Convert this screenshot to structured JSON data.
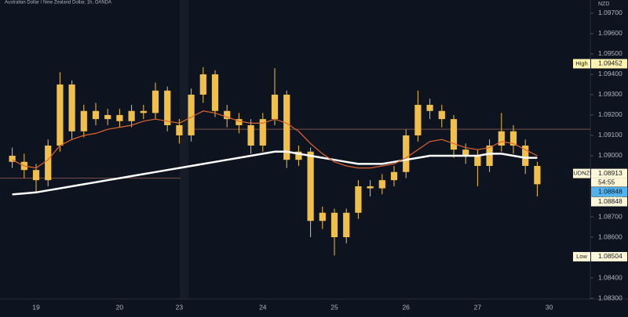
{
  "chart_data": {
    "type": "candlestick",
    "title": "Australian Dollar / New Zealand Dollar, 1h, OANDA",
    "y_axis_label": "NZD",
    "categories": [
      null,
      null,
      "19",
      null,
      null,
      null,
      null,
      null,
      null,
      "20",
      null,
      null,
      null,
      null,
      "23",
      null,
      null,
      null,
      null,
      null,
      null,
      "24",
      null,
      null,
      null,
      null,
      null,
      "25",
      null,
      null,
      null,
      null,
      null,
      "26",
      null,
      null,
      null,
      null,
      null,
      "27",
      null,
      null,
      null,
      null,
      null,
      "30"
    ],
    "open": [
      1.09,
      1.0897,
      1.0893,
      1.0888,
      1.0905,
      1.0935,
      1.0912,
      1.0922,
      1.0918,
      1.092,
      1.0917,
      1.0922,
      1.0921,
      1.0932,
      1.0915,
      1.091,
      1.093,
      1.094,
      1.0922,
      1.0918,
      1.0915,
      1.0905,
      1.0918,
      1.093,
      1.0898,
      1.0902,
      1.0868,
      1.0872,
      1.086,
      1.0872,
      1.0885,
      1.0884,
      1.0888,
      1.0892,
      1.091,
      1.0925,
      1.0922,
      1.0918,
      1.0903,
      1.09,
      1.0895,
      1.0905,
      1.0912,
      1.0905,
      1.0895,
      null
    ],
    "high": [
      1.0904,
      1.0901,
      1.0896,
      1.0908,
      1.0941,
      1.0937,
      1.0925,
      1.0926,
      1.0923,
      1.0923,
      1.0925,
      1.0925,
      1.0936,
      1.0934,
      1.0918,
      1.0933,
      1.09435,
      1.0942,
      1.0925,
      1.0921,
      1.0918,
      1.0921,
      1.0943,
      1.0932,
      1.0905,
      1.0904,
      1.0875,
      1.0874,
      1.0874,
      1.0888,
      1.0888,
      1.0891,
      1.0895,
      1.0913,
      1.0932,
      1.0928,
      1.0925,
      1.092,
      1.0906,
      1.0903,
      1.0908,
      1.0921,
      1.0915,
      1.0908,
      1.0897,
      null
    ],
    "low": [
      1.0894,
      1.0889,
      1.0882,
      1.0885,
      1.0902,
      1.0908,
      1.0909,
      1.0915,
      1.0915,
      1.0914,
      1.0914,
      1.0918,
      1.0918,
      1.0912,
      1.0906,
      1.0907,
      1.0926,
      1.0919,
      1.0914,
      1.0911,
      1.0901,
      1.0902,
      1.0915,
      1.0894,
      1.0895,
      1.086,
      1.0864,
      1.0851,
      1.0857,
      1.0869,
      1.088,
      1.0881,
      1.0885,
      1.0889,
      1.0907,
      1.0918,
      1.0914,
      1.0899,
      1.0896,
      1.0885,
      1.0892,
      1.0902,
      1.0901,
      1.0891,
      1.088,
      null
    ],
    "close": [
      1.0897,
      1.0893,
      1.0888,
      1.0905,
      1.0935,
      1.0912,
      1.0922,
      1.0918,
      1.092,
      1.0917,
      1.0922,
      1.0921,
      1.0932,
      1.0915,
      1.091,
      1.093,
      1.094,
      1.0922,
      1.0918,
      1.0915,
      1.0905,
      1.0918,
      1.093,
      1.0898,
      1.0902,
      1.0868,
      1.0872,
      1.086,
      1.0872,
      1.0885,
      1.0884,
      1.0888,
      1.0892,
      1.091,
      1.0925,
      1.0922,
      1.0918,
      1.0903,
      1.09,
      1.0895,
      1.0905,
      1.0912,
      1.0905,
      1.0895,
      1.0886,
      null
    ],
    "color": "#f0c04a",
    "overlays": [
      {
        "color": "#ffffff",
        "values": [
          1.0881,
          1.08815,
          1.0882,
          1.0883,
          1.0884,
          1.0885,
          1.0886,
          1.0887,
          1.0888,
          1.0889,
          1.089,
          1.0891,
          1.0892,
          1.0893,
          1.0894,
          1.0895,
          1.0896,
          1.0897,
          1.0898,
          1.0899,
          1.09,
          1.0901,
          1.0902,
          1.0902,
          1.0901,
          1.09,
          1.0899,
          1.0898,
          1.0897,
          1.0896,
          1.0896,
          1.0896,
          1.0897,
          1.0898,
          1.0899,
          1.09,
          1.09,
          1.09,
          1.09,
          1.09,
          1.0901,
          1.0901,
          1.09,
          1.0899,
          1.0899,
          null
        ]
      },
      {
        "color": "#e0662e",
        "values": [
          1.0898,
          1.0895,
          1.0894,
          1.0898,
          1.0905,
          1.0908,
          1.091,
          1.0911,
          1.0913,
          1.0914,
          1.0915,
          1.0917,
          1.0918,
          1.0917,
          1.0916,
          1.0919,
          1.0922,
          1.0921,
          1.0919,
          1.0917,
          1.0916,
          1.0916,
          1.0918,
          1.0916,
          1.0912,
          1.0906,
          1.0901,
          1.0897,
          1.0895,
          1.0894,
          1.0894,
          1.0895,
          1.0896,
          1.0899,
          1.0903,
          1.0907,
          1.0908,
          1.0906,
          1.0904,
          1.0903,
          1.0904,
          1.0907,
          1.0906,
          1.0903,
          1.09,
          null
        ]
      }
    ],
    "levels": [
      {
        "value": 1.0913,
        "color": "#7a4f48"
      },
      {
        "value": 1.0889,
        "color": "#7a4f48"
      }
    ],
    "price_labels": [
      {
        "name": "High",
        "value": 1.09452,
        "label": "1.09452",
        "color": "#fff3b0"
      },
      {
        "name": "AUDNZD",
        "value": 1.08913,
        "label": "1.08913",
        "countdown": "54:55",
        "color": "#fff8d8"
      },
      {
        "value": 1.08848,
        "label": "1.08848",
        "color": "#4fb3f0"
      },
      {
        "value": 1.08848,
        "label": "1.08848",
        "color": "#fff8d8"
      },
      {
        "name": "Low",
        "value": 1.08504,
        "label": "1.08504",
        "color": "#fff8d8"
      }
    ],
    "ylim": [
      1.08304,
      1.09765
    ],
    "yticks": [
      {
        "value": 1.097,
        "label": "1.09700"
      },
      {
        "value": 1.096,
        "label": "1.09600"
      },
      {
        "value": 1.095,
        "label": "1.09500"
      },
      {
        "value": 1.094,
        "label": "1.09400"
      },
      {
        "value": 1.093,
        "label": "1.09300"
      },
      {
        "value": 1.092,
        "label": "1.09200"
      },
      {
        "value": 1.091,
        "label": "1.09100"
      },
      {
        "value": 1.09,
        "label": "1.09000"
      },
      {
        "value": 1.089,
        "label": "1.08900"
      },
      {
        "value": 1.088,
        "label": "1.08800"
      },
      {
        "value": 1.087,
        "label": "1.08700"
      },
      {
        "value": 1.086,
        "label": "1.08600"
      },
      {
        "value": 1.085,
        "label": "1.08500"
      },
      {
        "value": 1.084,
        "label": "1.08400"
      },
      {
        "value": 1.083,
        "label": "1.08300"
      }
    ]
  }
}
